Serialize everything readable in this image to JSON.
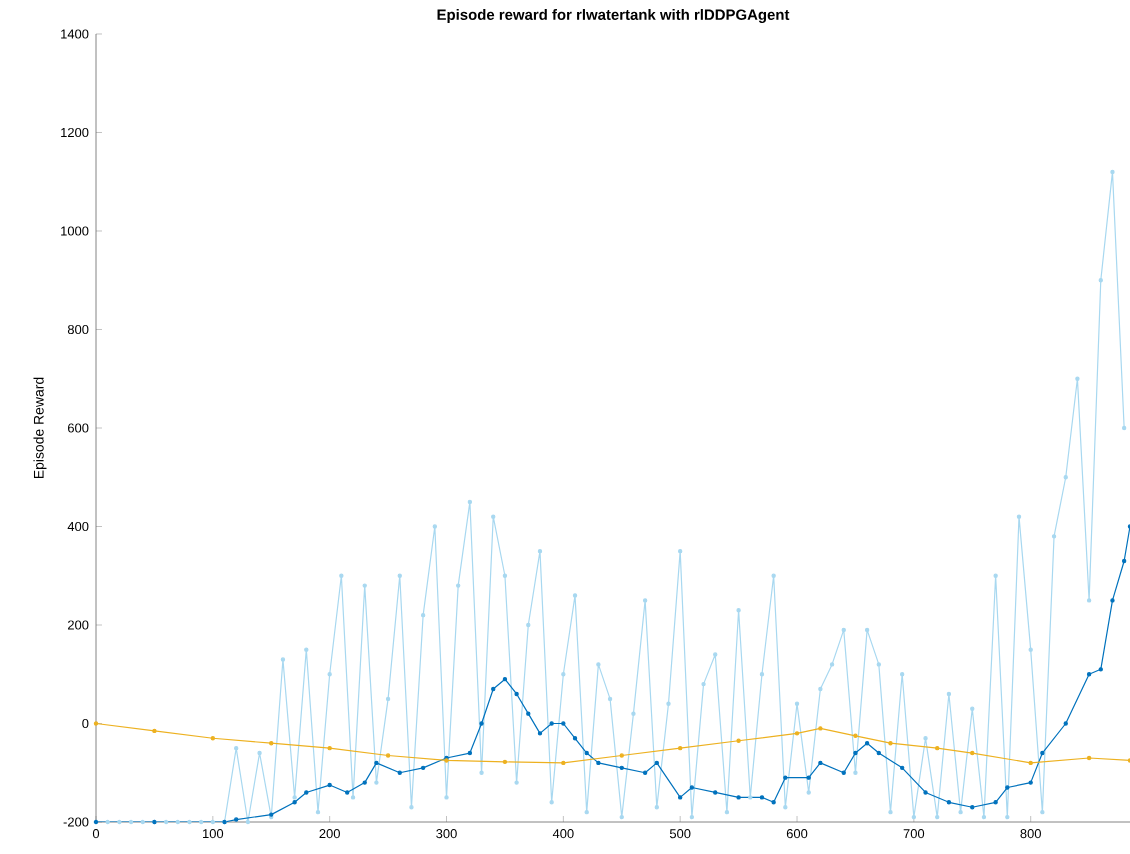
{
  "chart_data": {
    "type": "line",
    "title": "Episode reward for rlwatertank with rlDDPGAgent",
    "ylabel": "Episode Reward",
    "xlim": [
      0,
      885
    ],
    "ylim": [
      -200,
      1400
    ],
    "xticks": [
      0,
      100,
      200,
      300,
      400,
      500,
      600,
      700,
      800
    ],
    "yticks": [
      -200,
      0,
      200,
      400,
      600,
      800,
      1000,
      1200,
      1400
    ],
    "grid": false,
    "marker": "circle",
    "line_style": "solid",
    "series": [
      {
        "color": "#a8d8f0",
        "x": [
          0,
          10,
          20,
          30,
          40,
          50,
          60,
          70,
          80,
          90,
          100,
          110,
          120,
          130,
          140,
          150,
          160,
          170,
          180,
          190,
          200,
          210,
          220,
          230,
          240,
          250,
          260,
          270,
          280,
          290,
          300,
          310,
          320,
          330,
          340,
          350,
          360,
          370,
          380,
          390,
          400,
          410,
          420,
          430,
          440,
          450,
          460,
          470,
          480,
          490,
          500,
          510,
          520,
          530,
          540,
          550,
          560,
          570,
          580,
          590,
          600,
          610,
          620,
          630,
          640,
          650,
          660,
          670,
          680,
          690,
          700,
          710,
          720,
          730,
          740,
          750,
          760,
          770,
          780,
          790,
          800,
          810,
          820,
          830,
          840,
          850,
          860,
          870,
          880
        ],
        "values": [
          -200,
          -200,
          -200,
          -200,
          -200,
          -200,
          -200,
          -200,
          -200,
          -200,
          -200,
          -200,
          -50,
          -200,
          -60,
          -190,
          130,
          -150,
          150,
          -180,
          100,
          300,
          -150,
          280,
          -120,
          50,
          300,
          -170,
          220,
          400,
          -150,
          280,
          450,
          -100,
          420,
          300,
          -120,
          200,
          350,
          -160,
          100,
          260,
          -180,
          120,
          50,
          -190,
          20,
          250,
          -170,
          40,
          350,
          -190,
          80,
          140,
          -180,
          230,
          -150,
          100,
          300,
          -170,
          40,
          -140,
          70,
          120,
          190,
          -100,
          190,
          120,
          -180,
          100,
          -190,
          -30,
          -190,
          60,
          -180,
          30,
          -190,
          300,
          -190,
          420,
          150,
          -180,
          380,
          500,
          700,
          250,
          900,
          1120,
          600
        ]
      },
      {
        "color": "#0072bd",
        "x": [
          0,
          50,
          110,
          120,
          150,
          170,
          180,
          200,
          215,
          230,
          240,
          260,
          280,
          300,
          320,
          330,
          340,
          350,
          360,
          370,
          380,
          390,
          400,
          410,
          420,
          430,
          450,
          470,
          480,
          500,
          510,
          530,
          550,
          570,
          580,
          590,
          610,
          620,
          640,
          650,
          660,
          670,
          690,
          710,
          730,
          750,
          770,
          780,
          800,
          810,
          830,
          850,
          860,
          870,
          880,
          885
        ],
        "values": [
          -200,
          -200,
          -200,
          -195,
          -185,
          -160,
          -140,
          -125,
          -140,
          -120,
          -80,
          -100,
          -90,
          -70,
          -60,
          0,
          70,
          90,
          60,
          20,
          -20,
          0,
          0,
          -30,
          -60,
          -80,
          -90,
          -100,
          -80,
          -150,
          -130,
          -140,
          -150,
          -150,
          -160,
          -110,
          -110,
          -80,
          -100,
          -60,
          -40,
          -60,
          -90,
          -140,
          -160,
          -170,
          -160,
          -130,
          -120,
          -60,
          0,
          100,
          110,
          250,
          330,
          400
        ]
      },
      {
        "color": "#edb120",
        "x": [
          0,
          50,
          100,
          150,
          200,
          250,
          300,
          350,
          400,
          450,
          500,
          550,
          600,
          620,
          650,
          680,
          720,
          750,
          800,
          850,
          885
        ],
        "values": [
          0,
          -15,
          -30,
          -40,
          -50,
          -65,
          -75,
          -78,
          -80,
          -65,
          -50,
          -35,
          -20,
          -10,
          -25,
          -40,
          -50,
          -60,
          -80,
          -70,
          -75
        ]
      }
    ]
  }
}
